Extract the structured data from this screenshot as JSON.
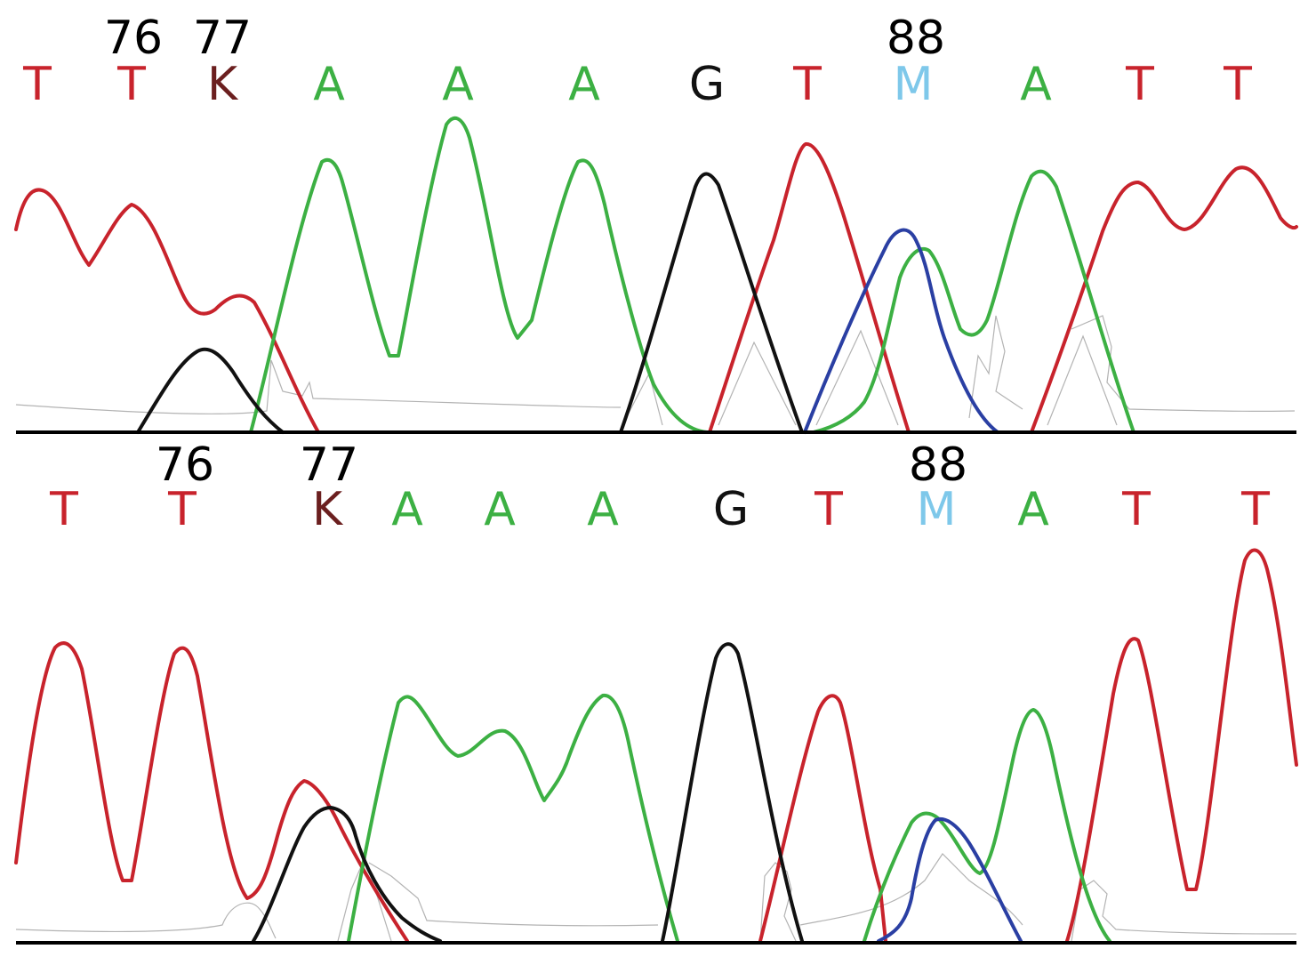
{
  "colors": {
    "A": "#3cb043",
    "C": "#2a3fa3",
    "G": "#111111",
    "T": "#c8232c",
    "K": "#6b1f1f",
    "M": "#7ec8ea"
  },
  "panels": [
    {
      "id": "top",
      "bases": [
        "T",
        "T",
        "K",
        "A",
        "A",
        "A",
        "G",
        "T",
        "M",
        "A",
        "T",
        "T"
      ],
      "positions": [
        {
          "label": "76",
          "base_index": 1
        },
        {
          "label": "77",
          "base_index": 2
        },
        {
          "label": "88",
          "base_index": 8
        }
      ]
    },
    {
      "id": "bottom",
      "bases": [
        "T",
        "T",
        "K",
        "A",
        "A",
        "A",
        "G",
        "T",
        "M",
        "A",
        "T",
        "T"
      ],
      "positions": [
        {
          "label": "76",
          "base_index": 1
        },
        {
          "label": "77",
          "base_index": 2
        },
        {
          "label": "88",
          "base_index": 8
        }
      ]
    }
  ]
}
